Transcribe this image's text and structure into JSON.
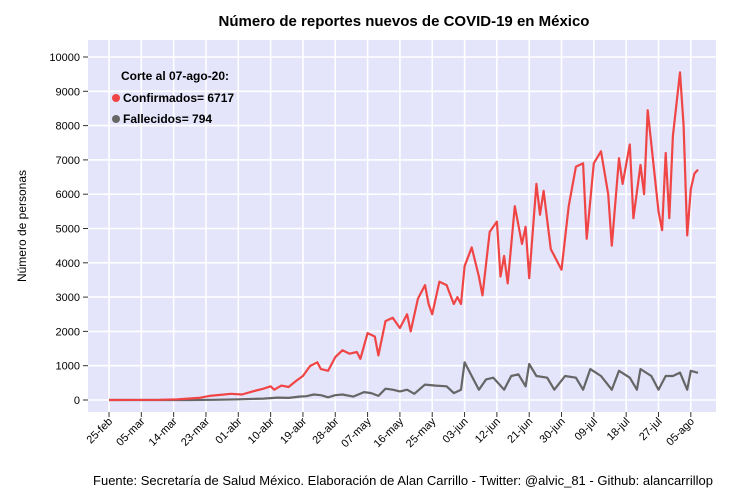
{
  "chart_data": {
    "type": "line",
    "title": "Número de reportes nuevos de COVID-19 en México",
    "ylabel": "Número de personas",
    "caption": "Fuente: Secretaría de Salud México. Elaboración de Alan Carrillo - Twitter: @alvic_81 - Github: alancarrillop",
    "ylim": [
      0,
      10000
    ],
    "yticks": [
      "0",
      "1000",
      "2000",
      "3000",
      "4000",
      "5000",
      "6000",
      "7000",
      "8000",
      "9000",
      "10000"
    ],
    "x_start": "2020-02-25",
    "x_end": "2020-08-07",
    "xticks": [
      {
        "date": "2020-02-25",
        "label": "25-feb"
      },
      {
        "date": "2020-03-05",
        "label": "05-mar"
      },
      {
        "date": "2020-03-14",
        "label": "14-mar"
      },
      {
        "date": "2020-03-23",
        "label": "23-mar"
      },
      {
        "date": "2020-04-01",
        "label": "01-abr"
      },
      {
        "date": "2020-04-10",
        "label": "10-abr"
      },
      {
        "date": "2020-04-19",
        "label": "19-abr"
      },
      {
        "date": "2020-04-28",
        "label": "28-abr"
      },
      {
        "date": "2020-05-07",
        "label": "07-may"
      },
      {
        "date": "2020-05-16",
        "label": "16-may"
      },
      {
        "date": "2020-05-25",
        "label": "25-may"
      },
      {
        "date": "2020-06-03",
        "label": "03-jun"
      },
      {
        "date": "2020-06-12",
        "label": "12-jun"
      },
      {
        "date": "2020-06-21",
        "label": "21-jun"
      },
      {
        "date": "2020-06-30",
        "label": "30-jun"
      },
      {
        "date": "2020-07-09",
        "label": "09-jul"
      },
      {
        "date": "2020-07-18",
        "label": "18-jul"
      },
      {
        "date": "2020-07-27",
        "label": "27-jul"
      },
      {
        "date": "2020-08-05",
        "label": "05-ago"
      }
    ],
    "grid": true,
    "legend_position": "top-left",
    "legend_header": "Corte al 07-ago-20:",
    "series": [
      {
        "name": "Confirmados= 6717",
        "color": "#f04545",
        "points": [
          [
            "2020-02-25",
            0
          ],
          [
            "2020-03-10",
            5
          ],
          [
            "2020-03-15",
            20
          ],
          [
            "2020-03-18",
            40
          ],
          [
            "2020-03-21",
            60
          ],
          [
            "2020-03-24",
            120
          ],
          [
            "2020-03-27",
            150
          ],
          [
            "2020-03-30",
            180
          ],
          [
            "2020-04-02",
            160
          ],
          [
            "2020-04-05",
            250
          ],
          [
            "2020-04-08",
            330
          ],
          [
            "2020-04-10",
            400
          ],
          [
            "2020-04-11",
            300
          ],
          [
            "2020-04-13",
            420
          ],
          [
            "2020-04-15",
            380
          ],
          [
            "2020-04-17",
            550
          ],
          [
            "2020-04-19",
            700
          ],
          [
            "2020-04-21",
            990
          ],
          [
            "2020-04-23",
            1100
          ],
          [
            "2020-04-24",
            900
          ],
          [
            "2020-04-26",
            850
          ],
          [
            "2020-04-28",
            1250
          ],
          [
            "2020-04-30",
            1450
          ],
          [
            "2020-05-02",
            1350
          ],
          [
            "2020-05-04",
            1400
          ],
          [
            "2020-05-05",
            1200
          ],
          [
            "2020-05-07",
            1950
          ],
          [
            "2020-05-09",
            1850
          ],
          [
            "2020-05-10",
            1300
          ],
          [
            "2020-05-12",
            2300
          ],
          [
            "2020-05-14",
            2400
          ],
          [
            "2020-05-16",
            2100
          ],
          [
            "2020-05-18",
            2500
          ],
          [
            "2020-05-19",
            2000
          ],
          [
            "2020-05-21",
            2950
          ],
          [
            "2020-05-23",
            3350
          ],
          [
            "2020-05-24",
            2800
          ],
          [
            "2020-05-25",
            2500
          ],
          [
            "2020-05-27",
            3450
          ],
          [
            "2020-05-29",
            3350
          ],
          [
            "2020-05-31",
            2800
          ],
          [
            "2020-06-01",
            3000
          ],
          [
            "2020-06-02",
            2800
          ],
          [
            "2020-06-03",
            3900
          ],
          [
            "2020-06-05",
            4450
          ],
          [
            "2020-06-07",
            3600
          ],
          [
            "2020-06-08",
            3050
          ],
          [
            "2020-06-10",
            4900
          ],
          [
            "2020-06-12",
            5200
          ],
          [
            "2020-06-13",
            3600
          ],
          [
            "2020-06-14",
            4200
          ],
          [
            "2020-06-15",
            3400
          ],
          [
            "2020-06-17",
            5650
          ],
          [
            "2020-06-19",
            4550
          ],
          [
            "2020-06-20",
            5050
          ],
          [
            "2020-06-21",
            3550
          ],
          [
            "2020-06-23",
            6300
          ],
          [
            "2020-06-24",
            5400
          ],
          [
            "2020-06-25",
            6100
          ],
          [
            "2020-06-27",
            4400
          ],
          [
            "2020-06-30",
            3800
          ],
          [
            "2020-07-02",
            5650
          ],
          [
            "2020-07-04",
            6800
          ],
          [
            "2020-07-06",
            6900
          ],
          [
            "2020-07-07",
            4700
          ],
          [
            "2020-07-09",
            6900
          ],
          [
            "2020-07-11",
            7250
          ],
          [
            "2020-07-13",
            6000
          ],
          [
            "2020-07-14",
            4500
          ],
          [
            "2020-07-16",
            7050
          ],
          [
            "2020-07-17",
            6300
          ],
          [
            "2020-07-19",
            7450
          ],
          [
            "2020-07-20",
            5300
          ],
          [
            "2020-07-22",
            6850
          ],
          [
            "2020-07-23",
            6000
          ],
          [
            "2020-07-24",
            8450
          ],
          [
            "2020-07-27",
            5500
          ],
          [
            "2020-07-28",
            4950
          ],
          [
            "2020-07-29",
            7200
          ],
          [
            "2020-07-30",
            5300
          ],
          [
            "2020-07-31",
            7700
          ],
          [
            "2020-08-02",
            9550
          ],
          [
            "2020-08-03",
            8000
          ],
          [
            "2020-08-04",
            4800
          ],
          [
            "2020-08-05",
            6150
          ],
          [
            "2020-08-06",
            6600
          ],
          [
            "2020-08-07",
            6717
          ]
        ]
      },
      {
        "name": "Fallecidos= 794",
        "color": "#666666",
        "points": [
          [
            "2020-02-25",
            0
          ],
          [
            "2020-03-18",
            0
          ],
          [
            "2020-03-25",
            5
          ],
          [
            "2020-04-01",
            20
          ],
          [
            "2020-04-08",
            40
          ],
          [
            "2020-04-12",
            70
          ],
          [
            "2020-04-15",
            60
          ],
          [
            "2020-04-18",
            100
          ],
          [
            "2020-04-20",
            110
          ],
          [
            "2020-04-22",
            160
          ],
          [
            "2020-04-24",
            140
          ],
          [
            "2020-04-26",
            80
          ],
          [
            "2020-04-28",
            140
          ],
          [
            "2020-04-30",
            160
          ],
          [
            "2020-05-03",
            100
          ],
          [
            "2020-05-06",
            230
          ],
          [
            "2020-05-08",
            200
          ],
          [
            "2020-05-10",
            120
          ],
          [
            "2020-05-12",
            330
          ],
          [
            "2020-05-14",
            300
          ],
          [
            "2020-05-16",
            250
          ],
          [
            "2020-05-18",
            300
          ],
          [
            "2020-05-20",
            180
          ],
          [
            "2020-05-23",
            450
          ],
          [
            "2020-05-26",
            420
          ],
          [
            "2020-05-29",
            400
          ],
          [
            "2020-05-31",
            200
          ],
          [
            "2020-06-02",
            300
          ],
          [
            "2020-06-03",
            1100
          ],
          [
            "2020-06-05",
            700
          ],
          [
            "2020-06-07",
            300
          ],
          [
            "2020-06-09",
            600
          ],
          [
            "2020-06-11",
            650
          ],
          [
            "2020-06-14",
            300
          ],
          [
            "2020-06-16",
            700
          ],
          [
            "2020-06-18",
            750
          ],
          [
            "2020-06-20",
            400
          ],
          [
            "2020-06-21",
            1050
          ],
          [
            "2020-06-23",
            700
          ],
          [
            "2020-06-26",
            650
          ],
          [
            "2020-06-28",
            300
          ],
          [
            "2020-07-01",
            700
          ],
          [
            "2020-07-04",
            650
          ],
          [
            "2020-07-06",
            300
          ],
          [
            "2020-07-08",
            900
          ],
          [
            "2020-07-11",
            700
          ],
          [
            "2020-07-14",
            300
          ],
          [
            "2020-07-16",
            850
          ],
          [
            "2020-07-19",
            650
          ],
          [
            "2020-07-21",
            300
          ],
          [
            "2020-07-22",
            900
          ],
          [
            "2020-07-25",
            700
          ],
          [
            "2020-07-27",
            300
          ],
          [
            "2020-07-29",
            700
          ],
          [
            "2020-07-31",
            700
          ],
          [
            "2020-08-02",
            800
          ],
          [
            "2020-08-04",
            300
          ],
          [
            "2020-08-05",
            850
          ],
          [
            "2020-08-07",
            794
          ]
        ]
      }
    ]
  }
}
